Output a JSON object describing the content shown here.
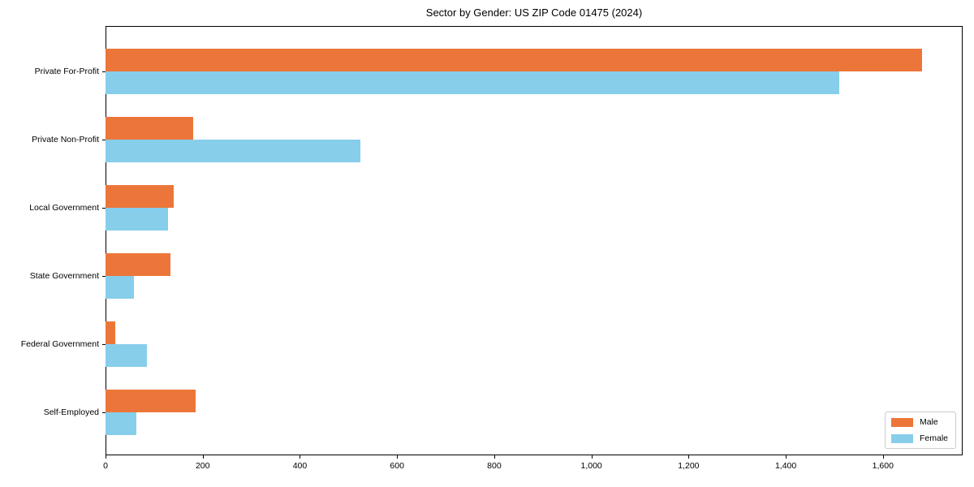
{
  "chart_data": {
    "type": "bar",
    "orientation": "horizontal",
    "title": "Sector by Gender: US ZIP Code 01475 (2024)",
    "categories": [
      "Private For-Profit",
      "Private Non-Profit",
      "Local Government",
      "State Government",
      "Federal Government",
      "Self-Employed"
    ],
    "series": [
      {
        "name": "Male",
        "color": "#EC7639",
        "values": [
          1680,
          180,
          140,
          134,
          20,
          186
        ]
      },
      {
        "name": "Female",
        "color": "#87CEEB",
        "values": [
          1510,
          524,
          128,
          59,
          85,
          63
        ]
      }
    ],
    "x_tick_values": [
      0,
      200,
      400,
      600,
      800,
      1000,
      1200,
      1400,
      1600
    ],
    "x_tick_labels": [
      "0",
      "200",
      "400",
      "600",
      "800",
      "1,000",
      "1,200",
      "1,400",
      "1,600"
    ],
    "xlim": [
      0,
      1764
    ],
    "xlabel": "",
    "ylabel": "",
    "grid": false,
    "legend": {
      "position": "lower-right",
      "entries": [
        "Male",
        "Female"
      ]
    }
  }
}
